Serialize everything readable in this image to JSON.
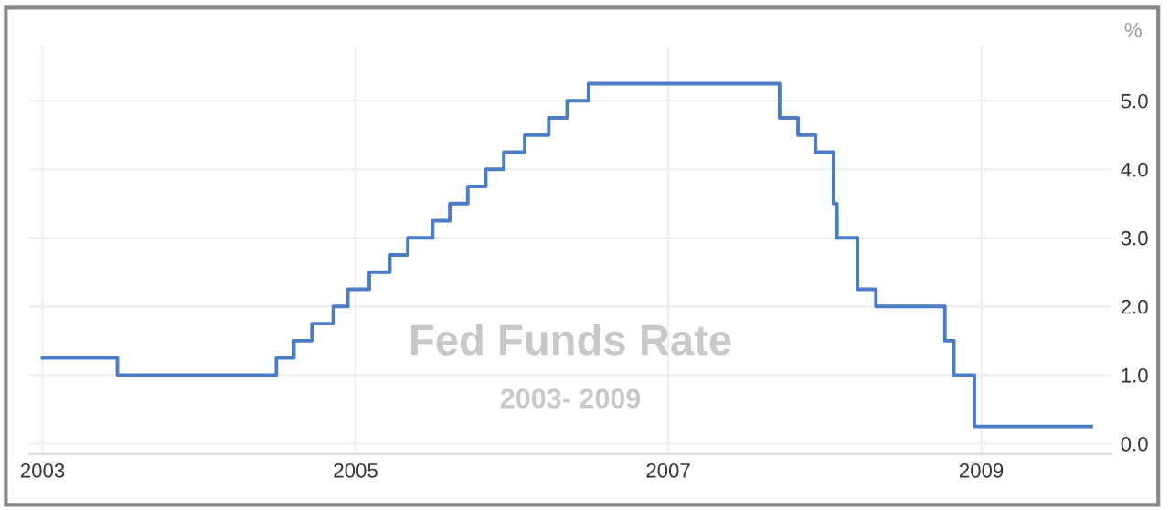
{
  "chart_data": {
    "type": "step",
    "title": "Fed Funds Rate",
    "subtitle": "2003- 2009",
    "ylabel": "%",
    "x": [
      "2003-01-01",
      "2003-06-25",
      "2004-06-30",
      "2004-08-10",
      "2004-09-21",
      "2004-11-10",
      "2004-12-14",
      "2005-02-02",
      "2005-03-22",
      "2005-05-03",
      "2005-06-30",
      "2005-08-09",
      "2005-09-20",
      "2005-11-01",
      "2005-12-13",
      "2006-01-31",
      "2006-03-28",
      "2006-05-10",
      "2006-06-29",
      "2007-09-18",
      "2007-10-31",
      "2007-12-11",
      "2008-01-22",
      "2008-01-30",
      "2008-03-18",
      "2008-04-30",
      "2008-10-08",
      "2008-10-29",
      "2008-12-16",
      "2009-09-15"
    ],
    "series": [
      {
        "color": "#4a7cc7",
        "values": [
          1.25,
          1.0,
          1.25,
          1.5,
          1.75,
          2.0,
          2.25,
          2.5,
          2.75,
          3.0,
          3.25,
          3.5,
          3.75,
          4.0,
          4.25,
          4.5,
          4.75,
          5.0,
          5.25,
          4.75,
          4.5,
          4.25,
          3.5,
          3.0,
          2.25,
          2.0,
          1.5,
          1.0,
          0.25,
          0.25
        ]
      }
    ],
    "xlim": [
      "2002-12-01",
      "2009-11-01"
    ],
    "xticks": [
      {
        "value": "2003-01-01",
        "label": "2003"
      },
      {
        "value": "2005-01-01",
        "label": "2005"
      },
      {
        "value": "2007-01-01",
        "label": "2007"
      },
      {
        "value": "2009-01-01",
        "label": "2009"
      }
    ],
    "ylim": [
      -0.15,
      5.8
    ],
    "yticks": [
      {
        "value": 0,
        "label": "0.0"
      },
      {
        "value": 1,
        "label": "1.0"
      },
      {
        "value": 2,
        "label": "2.0"
      },
      {
        "value": 3,
        "label": "3.0"
      },
      {
        "value": 4,
        "label": "4.0"
      },
      {
        "value": 5,
        "label": "5.0"
      }
    ],
    "grid": true,
    "legend": false
  }
}
